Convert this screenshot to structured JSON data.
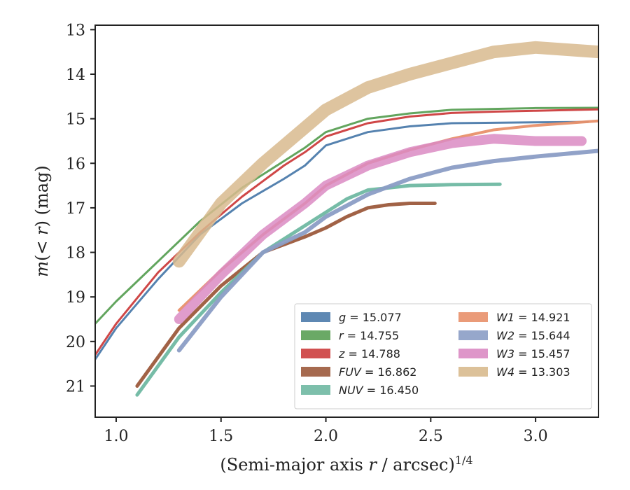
{
  "chart_data": {
    "type": "line",
    "xlabel": "(Semi-major axis r / arcsec)^1/4",
    "ylabel": "m(< r) (mag)",
    "xlim": [
      0.9,
      3.3
    ],
    "ylim": [
      21.7,
      12.9
    ],
    "y_inverted": true,
    "xticks": [
      "1.0",
      "1.5",
      "2.0",
      "2.5",
      "3.0"
    ],
    "yticks": [
      "13",
      "14",
      "15",
      "16",
      "17",
      "18",
      "19",
      "20",
      "21"
    ],
    "legend_position": "lower-right",
    "grid": false,
    "series": [
      {
        "name": "g = 15.077",
        "color": "#4c7bab",
        "x": [
          0.9,
          1.0,
          1.2,
          1.4,
          1.6,
          1.8,
          1.9,
          2.0,
          2.2,
          2.4,
          2.6,
          2.8,
          3.0,
          3.25
        ],
        "y": [
          20.4,
          19.7,
          18.6,
          17.6,
          16.9,
          16.35,
          16.05,
          15.6,
          15.3,
          15.17,
          15.1,
          15.09,
          15.08,
          15.07
        ]
      },
      {
        "name": "r = 14.755",
        "color": "#5aa055",
        "x": [
          0.9,
          1.0,
          1.2,
          1.4,
          1.6,
          1.8,
          1.9,
          2.0,
          2.2,
          2.4,
          2.6,
          2.8,
          3.0,
          3.3
        ],
        "y": [
          19.6,
          19.1,
          18.2,
          17.3,
          16.55,
          15.95,
          15.65,
          15.3,
          15.0,
          14.88,
          14.8,
          14.78,
          14.76,
          14.755
        ]
      },
      {
        "name": "z = 14.788",
        "color": "#cc3d3d",
        "x": [
          0.9,
          1.0,
          1.2,
          1.4,
          1.6,
          1.8,
          1.9,
          2.0,
          2.2,
          2.4,
          2.6,
          2.8,
          3.0,
          3.3
        ],
        "y": [
          20.3,
          19.6,
          18.45,
          17.55,
          16.75,
          16.05,
          15.75,
          15.4,
          15.1,
          14.95,
          14.87,
          14.84,
          14.82,
          14.79
        ]
      },
      {
        "name": "FUV = 16.862",
        "color": "#9c5a3c",
        "x": [
          1.1,
          1.3,
          1.5,
          1.7,
          1.9,
          2.0,
          2.1,
          2.2,
          2.3,
          2.4,
          2.52
        ],
        "y": [
          21.0,
          19.7,
          18.75,
          18.0,
          17.65,
          17.45,
          17.2,
          17.0,
          16.93,
          16.9,
          16.9
        ]
      },
      {
        "name": "NUV = 16.450",
        "color": "#6fb8a2",
        "x": [
          1.1,
          1.3,
          1.5,
          1.7,
          1.9,
          2.0,
          2.1,
          2.2,
          2.4,
          2.6,
          2.83
        ],
        "y": [
          21.2,
          19.9,
          18.9,
          18.0,
          17.4,
          17.1,
          16.8,
          16.6,
          16.5,
          16.48,
          16.47
        ]
      },
      {
        "name": "W1 = 14.921",
        "color": "#e8906a",
        "x": [
          1.3,
          1.5,
          1.7,
          1.9,
          2.0,
          2.2,
          2.4,
          2.6,
          2.8,
          3.0,
          3.3
        ],
        "y": [
          19.3,
          18.4,
          17.6,
          16.9,
          16.5,
          16.0,
          15.7,
          15.45,
          15.25,
          15.15,
          15.05
        ]
      },
      {
        "name": "W2 = 15.644",
        "color": "#8b9dc5",
        "x": [
          1.3,
          1.5,
          1.7,
          1.9,
          2.0,
          2.2,
          2.4,
          2.6,
          2.8,
          3.0,
          3.3
        ],
        "y": [
          20.2,
          19.0,
          18.0,
          17.55,
          17.2,
          16.7,
          16.35,
          16.1,
          15.95,
          15.85,
          15.72
        ]
      },
      {
        "name": "W3 = 15.457",
        "color": "#da8bc3",
        "x": [
          1.3,
          1.5,
          1.7,
          1.9,
          2.0,
          2.2,
          2.4,
          2.6,
          2.8,
          3.0,
          3.22
        ],
        "y": [
          19.5,
          18.5,
          17.6,
          16.9,
          16.5,
          16.05,
          15.75,
          15.55,
          15.45,
          15.5,
          15.5
        ]
      },
      {
        "name": "W4 = 13.303",
        "color": "#d8ba8e",
        "x": [
          1.3,
          1.5,
          1.7,
          1.9,
          2.0,
          2.2,
          2.4,
          2.6,
          2.8,
          3.0,
          3.3
        ],
        "y": [
          18.2,
          16.9,
          16.0,
          15.2,
          14.8,
          14.3,
          14.0,
          13.75,
          13.5,
          13.4,
          13.5
        ]
      }
    ]
  }
}
